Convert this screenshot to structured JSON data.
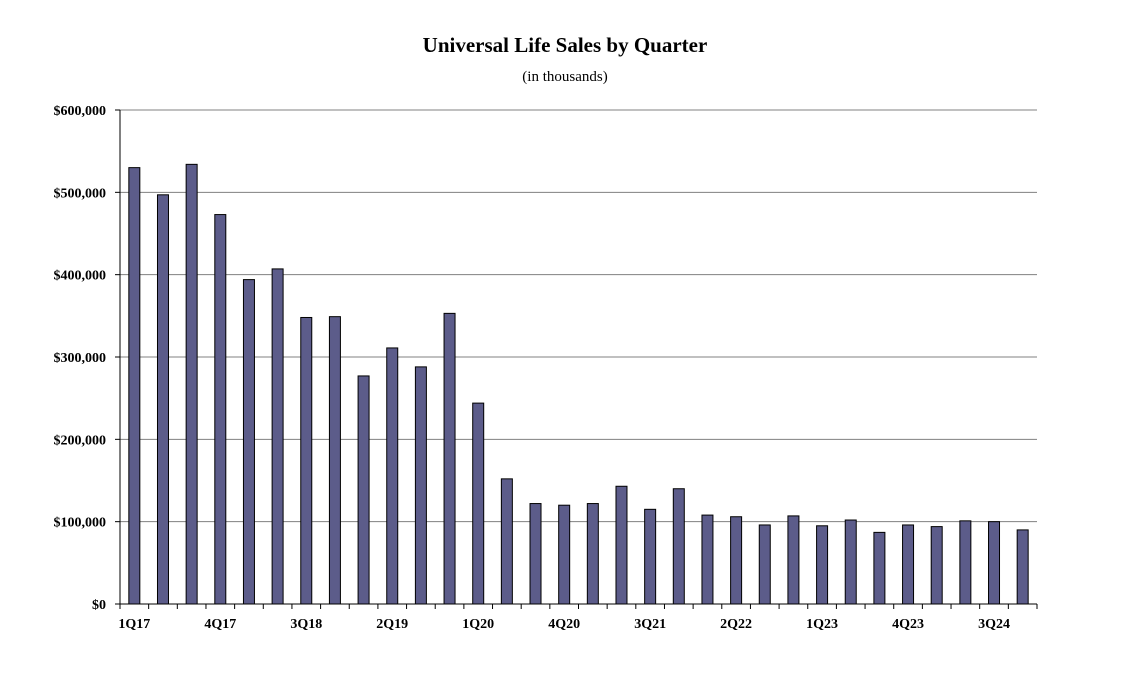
{
  "chart_data": {
    "type": "bar",
    "title": "Universal Life Sales by Quarter",
    "subtitle": "(in thousands)",
    "xlabel": "",
    "ylabel": "",
    "ylim": [
      0,
      600000
    ],
    "yticks": [
      0,
      100000,
      200000,
      300000,
      400000,
      500000,
      600000
    ],
    "ytick_labels": [
      "$0",
      "$100,000",
      "$200,000",
      "$300,000",
      "$400,000",
      "$500,000",
      "$600,000"
    ],
    "categories": [
      "1Q17",
      "2Q17",
      "3Q17",
      "4Q17",
      "1Q18",
      "2Q18",
      "3Q18",
      "4Q18",
      "1Q19",
      "2Q19",
      "3Q19",
      "4Q19",
      "1Q20",
      "2Q20",
      "3Q20",
      "4Q20",
      "1Q21",
      "2Q21",
      "3Q21",
      "4Q21",
      "1Q22",
      "2Q22",
      "3Q22",
      "4Q22",
      "1Q23",
      "2Q23",
      "3Q23",
      "4Q23",
      "1Q24",
      "2Q24",
      "3Q24",
      "4Q24"
    ],
    "xtick_labels_shown": [
      "1Q17",
      "4Q17",
      "3Q18",
      "2Q19",
      "1Q20",
      "4Q20",
      "3Q21",
      "2Q22",
      "1Q23",
      "4Q23",
      "3Q24"
    ],
    "values": [
      530000,
      497000,
      534000,
      473000,
      394000,
      407000,
      348000,
      349000,
      277000,
      311000,
      288000,
      353000,
      244000,
      152000,
      122000,
      120000,
      122000,
      143000,
      115000,
      140000,
      108000,
      106000,
      96000,
      107000,
      95000,
      102000,
      87000,
      96000,
      94000,
      101000,
      100000,
      90000
    ],
    "grid": true,
    "legend": "none",
    "bar_color": "#5c5c8a",
    "bar_edge_color": "#000000",
    "gridline_color": "#808080"
  }
}
